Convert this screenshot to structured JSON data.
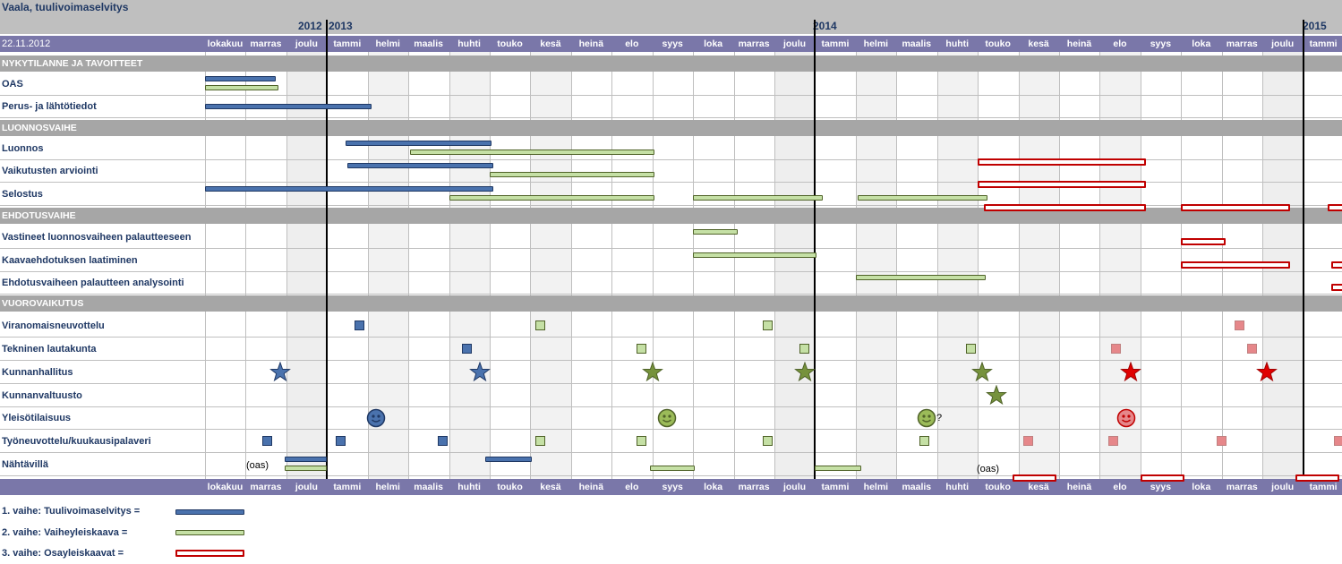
{
  "header": {
    "title": "Vaala, tuulivoimaselvitys",
    "date": "22.11.2012",
    "years": [
      "2012",
      "2013",
      "2014",
      "2015"
    ]
  },
  "months": [
    "lokakuu",
    "marras",
    "joulu",
    "tammi",
    "helmi",
    "maalis",
    "huhti",
    "touko",
    "kesä",
    "heinä",
    "elo",
    "syys",
    "loka",
    "marras",
    "joulu",
    "tammi",
    "helmi",
    "maalis",
    "huhti",
    "touko",
    "kesä",
    "heinä",
    "elo",
    "syys",
    "loka",
    "marras",
    "joulu",
    "tammi"
  ],
  "sections": {
    "s1": "NYKYTILANNE JA TAVOITTEET",
    "s2": "LUONNOSVAIHE",
    "s3": "EHDOTUSVAIHE",
    "s4": "VUOROVAIKUTUS"
  },
  "rows": {
    "r0": "OAS",
    "r1": "Perus- ja lähtötiedot",
    "r2": "Luonnos",
    "r3": "Vaikutusten arviointi",
    "r4": "Selostus",
    "r5": "Vastineet luonnosvaiheen palautteeseen",
    "r6": "Kaavaehdotuksen laatiminen",
    "r7": "Ehdotusvaiheen palautteen analysointi",
    "r8": "Viranomaisneuvottelu",
    "r9": "Tekninen lautakunta",
    "r10": "Kunnanhallitus",
    "r11": "Kunnanvaltuusto",
    "r12": "Yleisötilaisuus",
    "r13": "Työneuvottelu/kuukausipalaveri",
    "r14": "Nähtävillä"
  },
  "annotations": {
    "oas1": "(oas)",
    "oas2": "(oas)",
    "question": "?"
  },
  "legend": {
    "p1": "1. vaihe: Tuulivoimaselvitys  =",
    "p2": "2. vaihe: Vaiheyleiskaava  =",
    "p3": "3. vaihe: Osayleiskaavat  ="
  },
  "colors": {
    "phase1": "#4a72ad",
    "phase2": "#c5e0a5",
    "phase3": "#c00000",
    "header": "#7a77a9",
    "section": "#a6a6a6"
  },
  "chart_data": {
    "type": "gantt",
    "time_unit": "month index (0 = lokakuu 2012)",
    "phases": [
      "1. vaihe: Tuulivoimaselvitys",
      "2. vaihe: Vaiheyleiskaava",
      "3. vaihe: Osayleiskaavat"
    ],
    "bars": [
      {
        "row": "OAS",
        "phase": 1,
        "start": 0.0,
        "end": 1.7
      },
      {
        "row": "OAS",
        "phase": 2,
        "start": 0.0,
        "end": 1.75
      },
      {
        "row": "Perus- ja lähtötiedot",
        "phase": 1,
        "start": 0.0,
        "end": 4.05
      },
      {
        "row": "Luonnos",
        "phase": 1,
        "start": 3.45,
        "end": 7.0
      },
      {
        "row": "Luonnos",
        "phase": 2,
        "start": 5.05,
        "end": 11.0
      },
      {
        "row": "Luonnos",
        "phase": 3,
        "start": 19.0,
        "end": 23.05
      },
      {
        "row": "Vaikutusten arviointi",
        "phase": 1,
        "start": 3.5,
        "end": 7.05
      },
      {
        "row": "Vaikutusten arviointi",
        "phase": 2,
        "start": 7.0,
        "end": 11.0
      },
      {
        "row": "Vaikutusten arviointi",
        "phase": 3,
        "start": 19.0,
        "end": 23.05
      },
      {
        "row": "Selostus",
        "phase": 1,
        "start": 0.0,
        "end": 7.05
      },
      {
        "row": "Selostus",
        "phase": 2,
        "start": 6.0,
        "end": 11.0
      },
      {
        "row": "Selostus",
        "phase": 2,
        "start": 12.0,
        "end": 15.15
      },
      {
        "row": "Selostus",
        "phase": 2,
        "start": 16.05,
        "end": 19.2
      },
      {
        "row": "Selostus",
        "phase": 3,
        "start": 19.15,
        "end": 23.05
      },
      {
        "row": "Selostus",
        "phase": 3,
        "start": 24.0,
        "end": 26.6
      },
      {
        "row": "Selostus",
        "phase": 3,
        "start": 27.6,
        "end": 28.0
      },
      {
        "row": "Vastineet luonnosvaiheen palautteeseen",
        "phase": 2,
        "start": 12.0,
        "end": 13.05
      },
      {
        "row": "Vastineet luonnosvaiheen palautteeseen",
        "phase": 3,
        "start": 24.0,
        "end": 25.0
      },
      {
        "row": "Kaavaehdotuksen laatiminen",
        "phase": 2,
        "start": 12.0,
        "end": 15.0
      },
      {
        "row": "Kaavaehdotuksen laatiminen",
        "phase": 3,
        "start": 24.0,
        "end": 26.6
      },
      {
        "row": "Kaavaehdotuksen laatiminen",
        "phase": 3,
        "start": 27.7,
        "end": 28.0
      },
      {
        "row": "Ehdotusvaiheen palautteen analysointi",
        "phase": 2,
        "start": 16.0,
        "end": 19.15
      },
      {
        "row": "Ehdotusvaiheen palautteen analysointi",
        "phase": 3,
        "start": 27.7,
        "end": 28.0
      },
      {
        "row": "Nähtävillä",
        "phase": 1,
        "start": 1.95,
        "end": 2.95
      },
      {
        "row": "Nähtävillä",
        "phase": 2,
        "start": 1.95,
        "end": 2.95
      },
      {
        "row": "Nähtävillä",
        "phase": 1,
        "start": 6.9,
        "end": 8.0
      },
      {
        "row": "Nähtävillä",
        "phase": 2,
        "start": 10.95,
        "end": 12.0
      },
      {
        "row": "Nähtävillä",
        "phase": 2,
        "start": 15.0,
        "end": 16.1
      },
      {
        "row": "Nähtävillä",
        "phase": 3,
        "start": 19.85,
        "end": 20.85
      },
      {
        "row": "Nähtävillä",
        "phase": 3,
        "start": 23.0,
        "end": 24.0
      },
      {
        "row": "Nähtävillä",
        "phase": 3,
        "start": 26.8,
        "end": 27.8
      }
    ],
    "markers": [
      {
        "row": "Viranomaisneuvottelu",
        "phase": 1,
        "shape": "square",
        "at": 3.8
      },
      {
        "row": "Viranomaisneuvottelu",
        "phase": 2,
        "shape": "square",
        "at": 8.25
      },
      {
        "row": "Viranomaisneuvottelu",
        "phase": 2,
        "shape": "square",
        "at": 13.85
      },
      {
        "row": "Viranomaisneuvottelu",
        "phase": 3,
        "shape": "square",
        "at": 25.45
      },
      {
        "row": "Tekninen lautakunta",
        "phase": 1,
        "shape": "square",
        "at": 6.45
      },
      {
        "row": "Tekninen lautakunta",
        "phase": 2,
        "shape": "square",
        "at": 10.75
      },
      {
        "row": "Tekninen lautakunta",
        "phase": 2,
        "shape": "square",
        "at": 14.75
      },
      {
        "row": "Tekninen lautakunta",
        "phase": 2,
        "shape": "square",
        "at": 18.85
      },
      {
        "row": "Tekninen lautakunta",
        "phase": 3,
        "shape": "square",
        "at": 22.4
      },
      {
        "row": "Tekninen lautakunta",
        "phase": 3,
        "shape": "square",
        "at": 25.75
      },
      {
        "row": "Kunnanhallitus",
        "phase": 1,
        "shape": "star",
        "at": 1.85
      },
      {
        "row": "Kunnanhallitus",
        "phase": 1,
        "shape": "star",
        "at": 6.75
      },
      {
        "row": "Kunnanhallitus",
        "phase": 2,
        "shape": "star",
        "at": 11.0
      },
      {
        "row": "Kunnanhallitus",
        "phase": 2,
        "shape": "star",
        "at": 14.75
      },
      {
        "row": "Kunnanhallitus",
        "phase": 2,
        "shape": "star",
        "at": 19.1
      },
      {
        "row": "Kunnanhallitus",
        "phase": 3,
        "shape": "star",
        "at": 22.75
      },
      {
        "row": "Kunnanhallitus",
        "phase": 3,
        "shape": "star",
        "at": 26.1
      },
      {
        "row": "Kunnanvaltuusto",
        "phase": 2,
        "shape": "star",
        "at": 19.45
      },
      {
        "row": "Yleisötilaisuus",
        "phase": 1,
        "shape": "smiley",
        "at": 4.2
      },
      {
        "row": "Yleisötilaisuus",
        "phase": 2,
        "shape": "smiley",
        "at": 11.35
      },
      {
        "row": "Yleisötilaisuus",
        "phase": 2,
        "shape": "smiley",
        "at": 17.75
      },
      {
        "row": "Yleisötilaisuus",
        "phase": 3,
        "shape": "smiley",
        "at": 22.65
      },
      {
        "row": "Työneuvottelu/kuukausipalaveri",
        "phase": 1,
        "shape": "square",
        "at": 1.55
      },
      {
        "row": "Työneuvottelu/kuukausipalaveri",
        "phase": 1,
        "shape": "square",
        "at": 3.35
      },
      {
        "row": "Työneuvottelu/kuukausipalaveri",
        "phase": 1,
        "shape": "square",
        "at": 5.85
      },
      {
        "row": "Työneuvottelu/kuukausipalaveri",
        "phase": 2,
        "shape": "square",
        "at": 8.25
      },
      {
        "row": "Työneuvottelu/kuukausipalaveri",
        "phase": 2,
        "shape": "square",
        "at": 10.75
      },
      {
        "row": "Työneuvottelu/kuukausipalaveri",
        "phase": 2,
        "shape": "square",
        "at": 13.85
      },
      {
        "row": "Työneuvottelu/kuukausipalaveri",
        "phase": 2,
        "shape": "square",
        "at": 17.7
      },
      {
        "row": "Työneuvottelu/kuukausipalaveri",
        "phase": 3,
        "shape": "square",
        "at": 20.25
      },
      {
        "row": "Työneuvottelu/kuukausipalaveri",
        "phase": 3,
        "shape": "square",
        "at": 22.35
      },
      {
        "row": "Työneuvottelu/kuukausipalaveri",
        "phase": 3,
        "shape": "square",
        "at": 25.0
      },
      {
        "row": "Työneuvottelu/kuukausipalaveri",
        "phase": 3,
        "shape": "square",
        "at": 27.9
      }
    ]
  }
}
